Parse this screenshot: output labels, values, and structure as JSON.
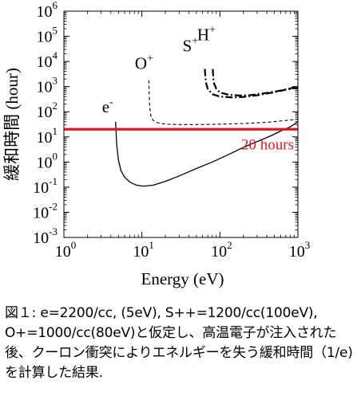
{
  "chart_data": {
    "type": "line",
    "xlabel": "Energy (eV)",
    "ylabel": "緩和時間 (hour)",
    "x_scale": "log",
    "y_scale": "log",
    "xlim": [
      1,
      1000
    ],
    "ylim": [
      0.001,
      1000000
    ],
    "x_ticks": [
      {
        "value": 1,
        "base": "10",
        "exp": "0"
      },
      {
        "value": 10,
        "base": "10",
        "exp": "1"
      },
      {
        "value": 100,
        "base": "10",
        "exp": "2"
      },
      {
        "value": 1000,
        "base": "10",
        "exp": "3"
      }
    ],
    "y_ticks": [
      {
        "value": 1000000,
        "base": "10",
        "exp": "6"
      },
      {
        "value": 100000,
        "base": "10",
        "exp": "5"
      },
      {
        "value": 10000,
        "base": "10",
        "exp": "4"
      },
      {
        "value": 1000,
        "base": "10",
        "exp": "3"
      },
      {
        "value": 100,
        "base": "10",
        "exp": "2"
      },
      {
        "value": 10,
        "base": "10",
        "exp": "1"
      },
      {
        "value": 1,
        "base": "10",
        "exp": "0"
      },
      {
        "value": 0.1,
        "base": "10",
        "exp": "-1"
      },
      {
        "value": 0.01,
        "base": "10",
        "exp": "-2"
      },
      {
        "value": 0.001,
        "base": "10",
        "exp": "-3"
      }
    ],
    "grid": false,
    "series": [
      {
        "name": "e-",
        "label_main": "e",
        "label_sup": "-",
        "style": "solid",
        "color": "#000000",
        "x": [
          4.6,
          4.75,
          5.0,
          5.4,
          6.0,
          7.0,
          8.5,
          10.5,
          14,
          20,
          30,
          50,
          80,
          130,
          200,
          300,
          450,
          600,
          800,
          1000
        ],
        "y": [
          40,
          5,
          1.2,
          0.45,
          0.25,
          0.16,
          0.12,
          0.11,
          0.12,
          0.17,
          0.28,
          0.55,
          1.0,
          2.0,
          3.8,
          6.5,
          11,
          17,
          25,
          40
        ]
      },
      {
        "name": "O+",
        "label_main": "O",
        "label_sup": "+",
        "style": "dashed",
        "color": "#000000",
        "x": [
          12.3,
          12.4,
          12.6,
          13,
          14,
          16,
          20,
          30,
          60,
          100,
          200,
          400,
          700,
          1000
        ],
        "y": [
          1800,
          500,
          150,
          70,
          45,
          36,
          32,
          31,
          31,
          32,
          34,
          38,
          45,
          50
        ]
      },
      {
        "name": "S++",
        "label_main": "S",
        "label_sup": "+",
        "style": "dash-dot",
        "color": "#000000",
        "x": [
          64,
          66,
          70,
          80,
          100,
          150,
          200,
          300,
          500,
          700,
          1000
        ],
        "y": [
          5000,
          1500,
          800,
          500,
          400,
          370,
          390,
          450,
          600,
          750,
          900
        ]
      },
      {
        "name": "H+",
        "label_main": "H",
        "label_sup": "+",
        "style": "dash-dot",
        "color": "#000000",
        "x": [
          81,
          83,
          90,
          100,
          130,
          180,
          250,
          400,
          600,
          800,
          1000
        ],
        "y": [
          5000,
          1500,
          800,
          580,
          470,
          440,
          460,
          560,
          700,
          850,
          1050
        ]
      }
    ],
    "reference_line": {
      "y": 20,
      "label": "20 hours",
      "color": "#e8141c"
    }
  },
  "caption": "図１: e=2200/cc, (5eV), S++=1200/cc(100eV), O+=1000/cc(80eV)と仮定し、高温電子が注入された後、クーロン衝突によりエネルギーを失う緩和時間（1/e)を計算した結果."
}
